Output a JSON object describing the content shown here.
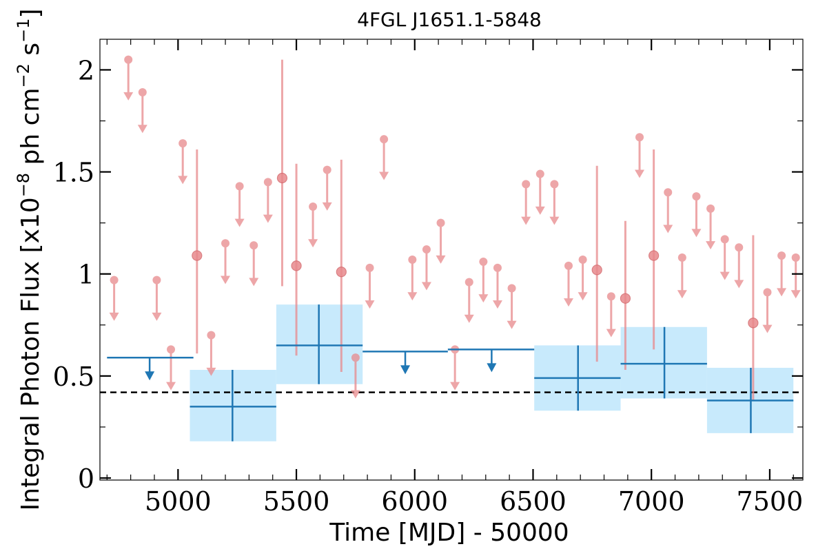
{
  "chart_data": {
    "type": "scatter",
    "title": "4FGL J1651.1-5848",
    "xlabel": "Time [MJD] - 50000",
    "ylabel_parts": {
      "prefix": "Integral Photon Flux [x10",
      "exp1": "−8",
      "mid": " ph cm",
      "exp2": "−2",
      "mid2": " s",
      "exp3": "−1",
      "suffix": "]"
    },
    "xlim": [
      4670,
      7640
    ],
    "ylim": [
      -0.01,
      2.15
    ],
    "x_ticks": [
      5000,
      5500,
      6000,
      6500,
      7000,
      7500
    ],
    "x_tick_labels": [
      "5000",
      "5500",
      "6000",
      "6500",
      "7000",
      "7500"
    ],
    "y_ticks": [
      0,
      0.5,
      1,
      1.5,
      2
    ],
    "y_tick_labels": [
      "0",
      "0.5",
      "1",
      "1.5",
      "2"
    ],
    "reference_line": {
      "y": 0.42,
      "style": "dashed"
    },
    "colors": {
      "short_bins": "#e8898c",
      "long_bins": "#1f77b4",
      "long_bins_band": "#c8eafc",
      "reference_line": "#000000"
    },
    "short_bins_upper_limits": [
      [
        4730,
        0.97
      ],
      [
        4790,
        2.05
      ],
      [
        4850,
        1.89
      ],
      [
        4910,
        0.97
      ],
      [
        4970,
        0.63
      ],
      [
        5020,
        1.64
      ],
      [
        5140,
        0.7
      ],
      [
        5200,
        1.15
      ],
      [
        5260,
        1.43
      ],
      [
        5320,
        1.14
      ],
      [
        5380,
        1.45
      ],
      [
        5570,
        1.33
      ],
      [
        5630,
        1.51
      ],
      [
        5750,
        0.59
      ],
      [
        5810,
        1.03
      ],
      [
        5870,
        1.66
      ],
      [
        5990,
        1.07
      ],
      [
        6050,
        1.12
      ],
      [
        6110,
        1.25
      ],
      [
        6170,
        0.63
      ],
      [
        6230,
        0.96
      ],
      [
        6290,
        1.06
      ],
      [
        6350,
        1.03
      ],
      [
        6410,
        0.93
      ],
      [
        6470,
        1.44
      ],
      [
        6530,
        1.49
      ],
      [
        6590,
        1.44
      ],
      [
        6650,
        1.04
      ],
      [
        6710,
        1.07
      ],
      [
        6830,
        0.89
      ],
      [
        6950,
        1.67
      ],
      [
        7070,
        1.4
      ],
      [
        7130,
        1.08
      ],
      [
        7190,
        1.38
      ],
      [
        7250,
        1.32
      ],
      [
        7310,
        1.17
      ],
      [
        7370,
        1.13
      ],
      [
        7490,
        0.91
      ],
      [
        7550,
        1.09
      ],
      [
        7610,
        1.08
      ]
    ],
    "short_bins_detections": [
      [
        5080,
        1.09,
        0.61,
        1.61
      ],
      [
        5440,
        1.47,
        0.94,
        2.05
      ],
      [
        5500,
        1.04,
        0.6,
        1.54
      ],
      [
        5690,
        1.01,
        0.52,
        1.56
      ],
      [
        6770,
        1.02,
        0.57,
        1.53
      ],
      [
        6890,
        0.88,
        0.53,
        1.26
      ],
      [
        7010,
        1.09,
        0.63,
        1.61
      ],
      [
        7430,
        0.76,
        0.38,
        1.19
      ]
    ],
    "long_bins_upper_limits": [
      {
        "x0": 4700,
        "x1": 5065,
        "x": 4880,
        "y": 0.59
      },
      {
        "x0": 5780,
        "x1": 6140,
        "x": 5960,
        "y": 0.62
      },
      {
        "x0": 6140,
        "x1": 6505,
        "x": 6325,
        "y": 0.63
      }
    ],
    "long_bins_detections": [
      {
        "x0": 5050,
        "x1": 5415,
        "x": 5230,
        "y": 0.35,
        "ylo": 0.18,
        "yhi": 0.53
      },
      {
        "x0": 5415,
        "x1": 5780,
        "x": 5595,
        "y": 0.65,
        "ylo": 0.46,
        "yhi": 0.85
      },
      {
        "x0": 6505,
        "x1": 6870,
        "x": 6690,
        "y": 0.49,
        "ylo": 0.33,
        "yhi": 0.65
      },
      {
        "x0": 6870,
        "x1": 7235,
        "x": 7055,
        "y": 0.56,
        "ylo": 0.39,
        "yhi": 0.74
      },
      {
        "x0": 7235,
        "x1": 7600,
        "x": 7420,
        "y": 0.38,
        "ylo": 0.22,
        "yhi": 0.54
      }
    ]
  }
}
